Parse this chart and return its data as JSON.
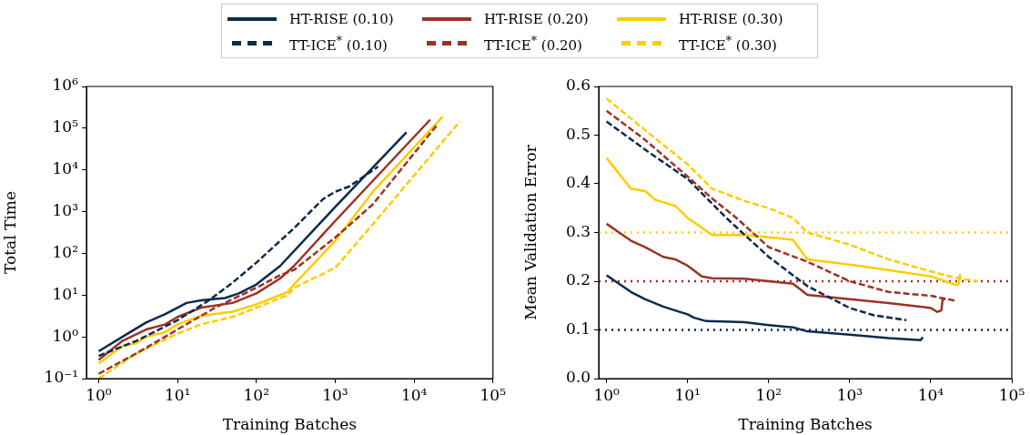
{
  "chart_data": [
    {
      "type": "line",
      "xlabel": "Training Batches",
      "ylabel": "Total Time",
      "log": "xy",
      "legend": "top",
      "xlim": [
        0.7,
        100000
      ],
      "xticks": [
        {
          "value": 1,
          "label": "10⁰"
        },
        {
          "value": 10,
          "label": "10¹"
        },
        {
          "value": 100,
          "label": "10²"
        },
        {
          "value": 1000,
          "label": "10³"
        },
        {
          "value": 10000,
          "label": "10⁴"
        },
        {
          "value": 100000,
          "label": "10⁵"
        }
      ],
      "ylim": [
        0.1,
        1000000
      ],
      "yticks": [
        {
          "value": 0.1,
          "label": "10⁻¹"
        },
        {
          "value": 1,
          "label": "10⁰"
        },
        {
          "value": 10,
          "label": "10¹"
        },
        {
          "value": 100,
          "label": "10²"
        },
        {
          "value": 1000,
          "label": "10³"
        },
        {
          "value": 10000,
          "label": "10⁴"
        },
        {
          "value": 100000,
          "label": "10⁵"
        },
        {
          "value": 1000000,
          "label": "10⁶"
        }
      ],
      "series": [
        {
          "name": "HT-RISE (0.10)",
          "color": "#0b2a4f",
          "line_style": "solid",
          "x": [
            1,
            2,
            4,
            7,
            10,
            13,
            20,
            40,
            60,
            100,
            200,
            1000,
            8000
          ],
          "values": [
            0.45,
            1,
            2.2,
            3.5,
            5,
            6.5,
            7.5,
            8.5,
            11,
            18,
            50,
            1300,
            80000
          ]
        },
        {
          "name": "TT-ICE$^{*}$ (0.10)",
          "color": "#0b2a4f",
          "line_style": "dashed",
          "x": [
            1,
            3,
            10,
            25,
            50,
            100,
            300,
            700,
            1000,
            1500,
            3500
          ],
          "values": [
            0.35,
            0.8,
            2.5,
            7.5,
            20,
            60,
            400,
            2000,
            3000,
            4000,
            12000
          ]
        },
        {
          "name": "HT-RISE (0.20)",
          "color": "#9b3226",
          "line_style": "solid",
          "x": [
            1,
            2,
            4,
            7,
            10,
            20,
            50,
            100,
            200,
            300,
            1000,
            16000
          ],
          "values": [
            0.28,
            0.8,
            1.5,
            2,
            3,
            5,
            6.5,
            11,
            25,
            50,
            600,
            160000
          ]
        },
        {
          "name": "TT-ICE$^{*}$ (0.20)",
          "color": "#9b3226",
          "line_style": "dashed",
          "x": [
            1,
            3,
            10,
            30,
            100,
            200,
            300,
            1000,
            3000,
            20000
          ],
          "values": [
            0.13,
            0.4,
            1.5,
            5,
            15,
            30,
            40,
            240,
            1500,
            126000
          ]
        },
        {
          "name": "HT-RISE (0.30)",
          "color": "#ffcc00",
          "line_style": "solid",
          "x": [
            1,
            2,
            3,
            4,
            7,
            10,
            20,
            50,
            100,
            200,
            250,
            300,
            1000,
            3000,
            23000
          ],
          "values": [
            0.23,
            0.6,
            0.7,
            1,
            1.3,
            2,
            3.2,
            4,
            6,
            10,
            12,
            18,
            200,
            3000,
            190000
          ]
        },
        {
          "name": "TT-ICE$^{*}$ (0.30)",
          "color": "#ffcc00",
          "line_style": "dashed",
          "x": [
            1,
            3,
            10,
            20,
            50,
            100,
            250,
            300,
            1000,
            3000,
            38000
          ],
          "values": [
            0.1,
            0.4,
            1.2,
            2,
            3,
            5,
            10,
            15,
            45,
            500,
            145000
          ]
        }
      ]
    },
    {
      "type": "line",
      "xlabel": "Training Batches",
      "ylabel": "Mean Validation Error",
      "log": "x",
      "xlim": [
        0.8,
        100000
      ],
      "xticks": [
        {
          "value": 1,
          "label": "10⁰"
        },
        {
          "value": 10,
          "label": "10¹"
        },
        {
          "value": 100,
          "label": "10²"
        },
        {
          "value": 1000,
          "label": "10³"
        },
        {
          "value": 10000,
          "label": "10⁴"
        },
        {
          "value": 100000,
          "label": "10⁵"
        }
      ],
      "ylim": [
        0,
        0.6
      ],
      "yticks": [
        {
          "value": 0,
          "label": "0.0"
        },
        {
          "value": 0.1,
          "label": "0.1"
        },
        {
          "value": 0.2,
          "label": "0.2"
        },
        {
          "value": 0.3,
          "label": "0.3"
        },
        {
          "value": 0.4,
          "label": "0.4"
        },
        {
          "value": 0.5,
          "label": "0.5"
        },
        {
          "value": 0.6,
          "label": "0.6"
        }
      ],
      "ref_lines": [
        {
          "axis": "y",
          "value": 0.1,
          "color": "#0b2a4f",
          "line_style": "dotted"
        },
        {
          "axis": "y",
          "value": 0.2,
          "color": "#9b3226",
          "line_style": "dotted"
        },
        {
          "axis": "y",
          "value": 0.3,
          "color": "#ffcc00",
          "line_style": "dotted"
        }
      ],
      "series": [
        {
          "color": "#0b2a4f",
          "line_style": "solid",
          "x": [
            1,
            2,
            3,
            5,
            7,
            10,
            12,
            17,
            50,
            100,
            200,
            300,
            1000,
            3000,
            7500,
            8000
          ],
          "values": [
            0.212,
            0.178,
            0.163,
            0.148,
            0.14,
            0.132,
            0.125,
            0.118,
            0.116,
            0.11,
            0.105,
            0.097,
            0.09,
            0.083,
            0.079,
            0.085
          ]
        },
        {
          "color": "#0b2a4f",
          "line_style": "dashed",
          "x": [
            1,
            3,
            10,
            30,
            100,
            300,
            1000,
            2000,
            5000
          ],
          "values": [
            0.528,
            0.47,
            0.41,
            0.33,
            0.25,
            0.19,
            0.145,
            0.13,
            0.12
          ]
        },
        {
          "color": "#9b3226",
          "line_style": "solid",
          "x": [
            1,
            2,
            3,
            5,
            7,
            10,
            15,
            20,
            50,
            100,
            200,
            300,
            1000,
            3000,
            10000,
            12000,
            13500,
            14000,
            15000
          ],
          "values": [
            0.318,
            0.283,
            0.27,
            0.25,
            0.245,
            0.232,
            0.21,
            0.206,
            0.205,
            0.2,
            0.195,
            0.172,
            0.163,
            0.155,
            0.145,
            0.137,
            0.14,
            0.162,
            0.163
          ]
        },
        {
          "color": "#9b3226",
          "line_style": "dashed",
          "x": [
            1,
            3,
            10,
            20,
            40,
            100,
            300,
            1000,
            3000,
            10000,
            20000
          ],
          "values": [
            0.55,
            0.49,
            0.415,
            0.37,
            0.33,
            0.27,
            0.24,
            0.2,
            0.178,
            0.17,
            0.16
          ]
        },
        {
          "color": "#ffcc00",
          "line_style": "solid",
          "x": [
            1,
            2,
            3,
            4,
            7,
            10,
            20,
            50,
            100,
            200,
            300,
            1000,
            3000,
            10000,
            20000,
            22000,
            23000
          ],
          "values": [
            0.453,
            0.39,
            0.385,
            0.367,
            0.355,
            0.33,
            0.295,
            0.295,
            0.29,
            0.285,
            0.245,
            0.234,
            0.223,
            0.21,
            0.193,
            0.193,
            0.215
          ]
        },
        {
          "color": "#ffcc00",
          "line_style": "dashed",
          "x": [
            1,
            3,
            10,
            20,
            50,
            100,
            200,
            300,
            1000,
            3000,
            10000,
            20000,
            38000
          ],
          "values": [
            0.575,
            0.51,
            0.44,
            0.39,
            0.365,
            0.35,
            0.33,
            0.3,
            0.275,
            0.245,
            0.22,
            0.207,
            0.2
          ]
        }
      ]
    }
  ]
}
